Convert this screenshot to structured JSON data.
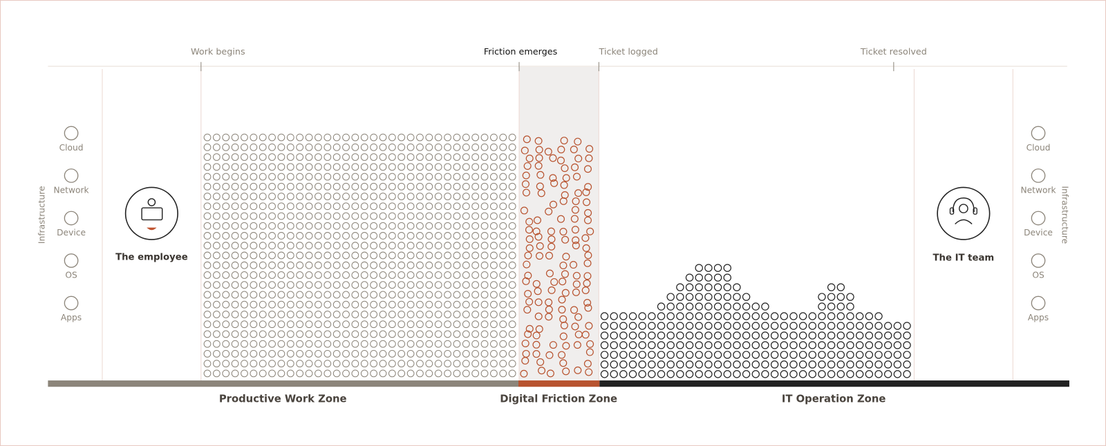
{
  "milestones": [
    "Work begins",
    "Friction emerges",
    "Ticket logged",
    "Ticket resolved"
  ],
  "infrastructure_left": {
    "title": "Infrastructure",
    "items": [
      "Cloud",
      "Network",
      "Device",
      "OS",
      "Apps"
    ]
  },
  "infrastructure_right": {
    "title": "Infrastructure",
    "items": [
      "Cloud",
      "Network",
      "Device",
      "OS",
      "Apps"
    ]
  },
  "employee": {
    "label": "The employee"
  },
  "it_team": {
    "label": "The IT team"
  },
  "zones": [
    "Productive Work Zone",
    "Digital Friction Zone",
    "IT Operation Zone"
  ]
}
